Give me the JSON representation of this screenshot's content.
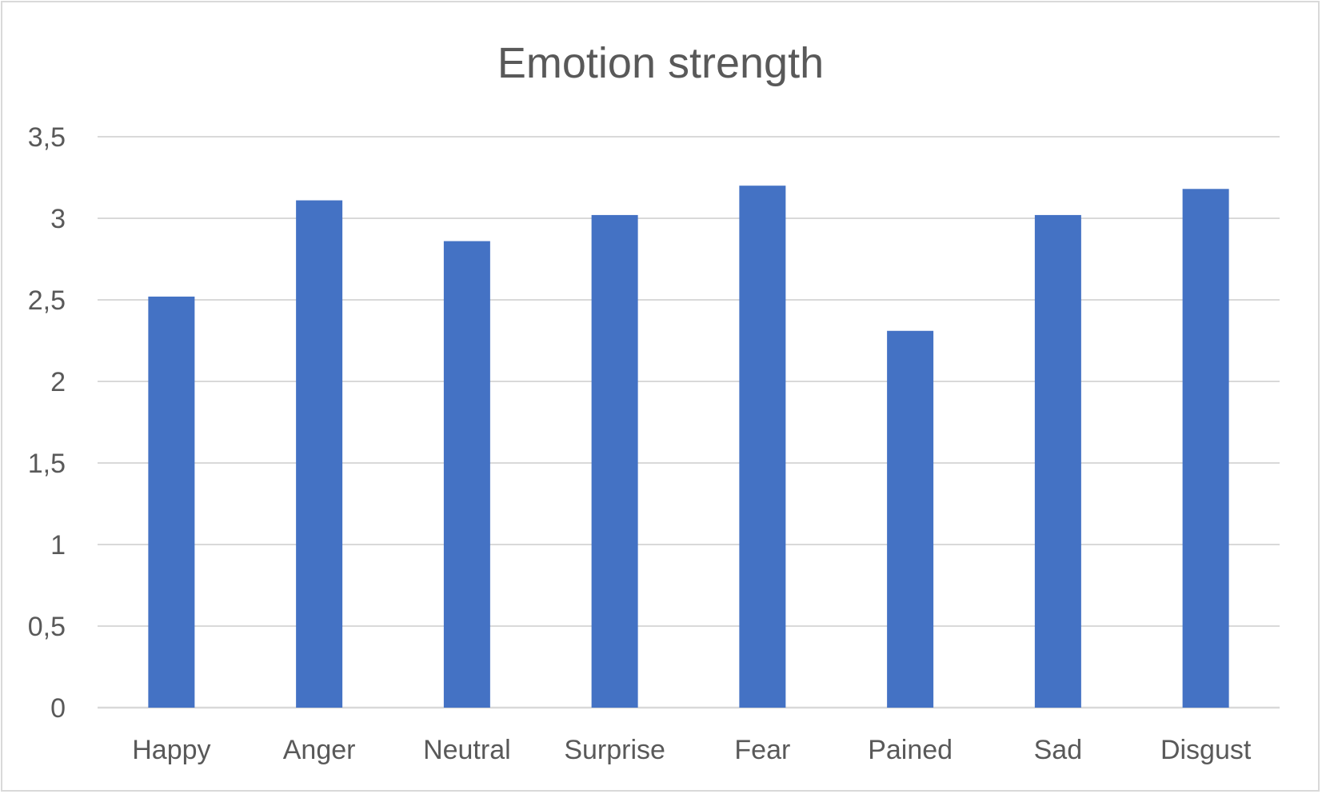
{
  "chart_data": {
    "type": "bar",
    "title": "Emotion strength",
    "xlabel": "",
    "ylabel": "",
    "categories": [
      "Happy",
      "Anger",
      "Neutral",
      "Surprise",
      "Fear",
      "Pained",
      "Sad",
      "Disgust"
    ],
    "values": [
      2.52,
      3.11,
      2.86,
      3.02,
      3.2,
      2.31,
      3.02,
      3.18
    ],
    "ylim": [
      0,
      3.5
    ],
    "yticks": [
      0,
      0.5,
      1,
      1.5,
      2,
      2.5,
      3,
      3.5
    ],
    "ytick_labels": [
      "0",
      "0,5",
      "1",
      "1,5",
      "2",
      "2,5",
      "3",
      "3,5"
    ],
    "grid": true,
    "legend": "none",
    "colors": {
      "bar": "#4472C4",
      "grid": "#d9d9d9",
      "text": "#595959",
      "border": "#d9d9d9"
    }
  }
}
